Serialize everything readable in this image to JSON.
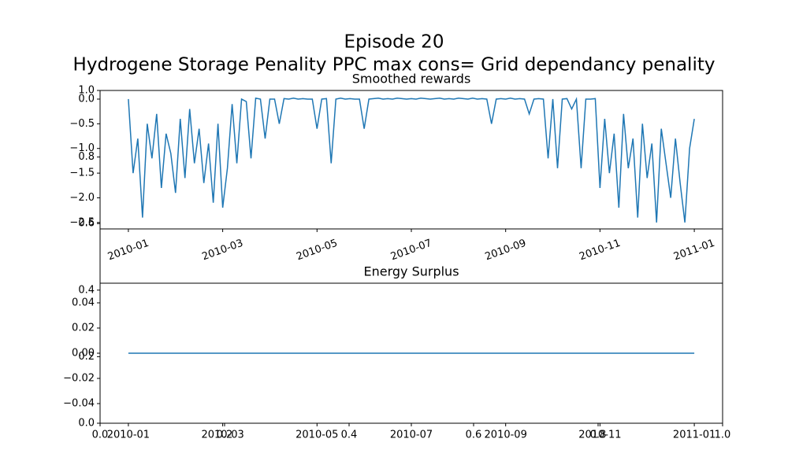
{
  "title": "Episode 20",
  "subtitle": "Hydrogene Storage Penality  PPC max cons= Grid dependancy penality",
  "chart_data": [
    {
      "type": "axes",
      "xlim": [
        0,
        1
      ],
      "ylim": [
        0,
        1
      ],
      "xticks": [
        {
          "value": 0,
          "label": "0.0"
        },
        0.2,
        0.4,
        0.6,
        0.8,
        {
          "value": 1,
          "label": "1.0"
        }
      ],
      "yticks": [
        {
          "value": 0,
          "label": "0.0"
        },
        0.2,
        0.4,
        0.6,
        0.8,
        {
          "value": 1,
          "label": "1.0"
        }
      ]
    },
    {
      "type": "line",
      "title": "Smoothed rewards",
      "color": "#1f77b4",
      "x": [
        0,
        0.1,
        0.2,
        0.3,
        0.4,
        0.5,
        0.6,
        0.7,
        0.8,
        0.9,
        1,
        1.1,
        1.2,
        1.3,
        1.4,
        1.5,
        1.6,
        1.7,
        1.8,
        1.9,
        2,
        2.1,
        2.2,
        2.3,
        2.4,
        2.5,
        2.6,
        2.7,
        2.8,
        2.9,
        3,
        3.1,
        3.2,
        3.3,
        3.4,
        3.5,
        3.6,
        3.7,
        3.8,
        3.9,
        4,
        4.1,
        4.2,
        4.3,
        4.4,
        4.5,
        4.6,
        4.7,
        4.8,
        4.9,
        5,
        5.1,
        5.2,
        5.3,
        5.4,
        5.5,
        5.6,
        5.7,
        5.8,
        5.9,
        6,
        6.1,
        6.2,
        6.3,
        6.4,
        6.5,
        6.6,
        6.7,
        6.8,
        6.9,
        7,
        7.1,
        7.2,
        7.3,
        7.4,
        7.5,
        7.6,
        7.7,
        7.8,
        7.9,
        8,
        8.1,
        8.2,
        8.3,
        8.4,
        8.5,
        8.6,
        8.7,
        8.8,
        8.9,
        9,
        9.1,
        9.2,
        9.3,
        9.4,
        9.5,
        9.6,
        9.7,
        9.8,
        9.9,
        10,
        10.1,
        10.2,
        10.3,
        10.4,
        10.5,
        10.6,
        10.7,
        10.8,
        10.9,
        11,
        11.1,
        11.2,
        11.3,
        11.4,
        11.5,
        11.6,
        11.7,
        11.8,
        11.9,
        12
      ],
      "values": [
        0.0,
        -1.5,
        -0.8,
        -2.4,
        -0.5,
        -1.2,
        -0.3,
        -1.8,
        -0.7,
        -1.1,
        -1.9,
        -0.4,
        -1.6,
        -0.2,
        -1.3,
        -0.6,
        -1.7,
        -0.9,
        -2.1,
        -0.5,
        -2.2,
        -1.4,
        -0.1,
        -1.3,
        0.0,
        -0.05,
        -1.2,
        0.02,
        0.0,
        -0.8,
        0.0,
        0.0,
        -0.5,
        0.01,
        0.0,
        0.02,
        0.0,
        0.01,
        0.0,
        0.0,
        -0.6,
        0.0,
        0.01,
        -1.3,
        0.0,
        0.02,
        0.0,
        0.01,
        0.0,
        0.0,
        -0.6,
        0.0,
        0.01,
        0.02,
        0.0,
        0.01,
        0.0,
        0.02,
        0.01,
        0.0,
        0.01,
        0.0,
        0.02,
        0.01,
        0.0,
        0.01,
        0.02,
        0.0,
        0.01,
        0.0,
        0.02,
        0.01,
        0.0,
        0.02,
        0.0,
        0.01,
        0.0,
        -0.5,
        0.0,
        0.01,
        0.0,
        0.02,
        0.0,
        0.01,
        0.0,
        -0.3,
        0.0,
        0.01,
        0.0,
        -1.2,
        0.0,
        -1.4,
        0.0,
        0.01,
        -0.2,
        0.0,
        -1.4,
        0.0,
        0.0,
        0.01,
        -1.8,
        -0.4,
        -1.5,
        -0.7,
        -2.2,
        -0.3,
        -1.4,
        -0.8,
        -2.4,
        -0.5,
        -1.6,
        -0.9,
        -2.5,
        -0.6,
        -1.3,
        -2.0,
        -0.8,
        -1.7,
        -2.5,
        -1.0,
        -0.4
      ],
      "xlim": [
        -0.6,
        12.6
      ],
      "ylim": [
        -2.63,
        0.175
      ],
      "xticks": [
        {
          "value": 0,
          "label": "2010-01"
        },
        {
          "value": 2,
          "label": "2010-03"
        },
        {
          "value": 4,
          "label": "2010-05"
        },
        {
          "value": 6,
          "label": "2010-07"
        },
        {
          "value": 8,
          "label": "2010-09"
        },
        {
          "value": 10,
          "label": "2010-11"
        },
        {
          "value": 12,
          "label": "2011-01"
        }
      ],
      "yticks": [
        {
          "value": 0,
          "label": "0.0"
        },
        {
          "value": -0.5,
          "label": "−0.5"
        },
        {
          "value": -1,
          "label": "−1.0"
        },
        {
          "value": -1.5,
          "label": "−1.5"
        },
        {
          "value": -2,
          "label": "−2.0"
        },
        {
          "value": -2.5,
          "label": "−2.5"
        }
      ]
    },
    {
      "type": "line",
      "title": "Energy Surplus",
      "color": "#1f77b4",
      "x": [
        0,
        12
      ],
      "values": [
        0,
        0
      ],
      "xlim": [
        -0.6,
        12.6
      ],
      "ylim": [
        -0.0556,
        0.0556
      ],
      "xticks": [
        {
          "value": 0,
          "label": "2010-01"
        },
        {
          "value": 2,
          "label": "2010-03"
        },
        {
          "value": 4,
          "label": "2010-05"
        },
        {
          "value": 6,
          "label": "2010-07"
        },
        {
          "value": 8,
          "label": "2010-09"
        },
        {
          "value": 10,
          "label": "2010-11"
        },
        {
          "value": 12,
          "label": "2011-01"
        }
      ],
      "yticks": [
        0.04,
        0.02,
        {
          "value": 0,
          "label": "0.00"
        },
        {
          "value": -0.02,
          "label": "−0.02"
        },
        {
          "value": -0.04,
          "label": "−0.04"
        }
      ]
    }
  ]
}
